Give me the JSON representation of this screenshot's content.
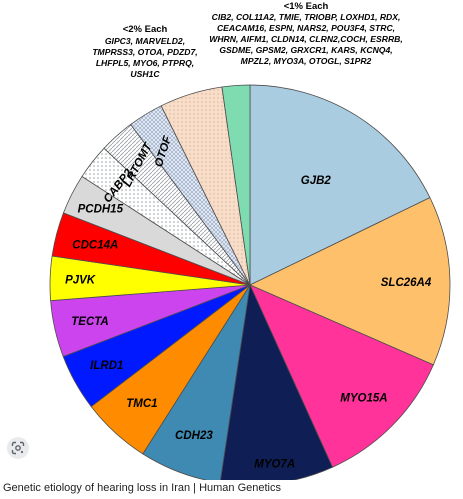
{
  "chart_data": {
    "type": "pie",
    "slices": [
      {
        "label": "GJB2",
        "value": 17.5,
        "color": "#a9cce0"
      },
      {
        "label": "SLC26A4",
        "value": 13.5,
        "color": "#ffc06b"
      },
      {
        "label": "MYO15A",
        "value": 11.5,
        "color": "#ff3399"
      },
      {
        "label": "MYO7A",
        "value": 9.0,
        "color": "#0f1f56"
      },
      {
        "label": "CDH23",
        "value": 6.5,
        "color": "#3f8ab2"
      },
      {
        "label": "TMC1",
        "value": 5.5,
        "color": "#ff8c00"
      },
      {
        "label": "ILRD1",
        "value": 4.5,
        "color": "#0019ff"
      },
      {
        "label": "TECTA",
        "value": 4.5,
        "color": "#cc44ee"
      },
      {
        "label": "PJVK",
        "value": 3.5,
        "color": "#ffff00"
      },
      {
        "label": "CDC14A",
        "value": 3.5,
        "color": "#ff0000"
      },
      {
        "label": "PCDH15",
        "value": 3.2,
        "color": "#d9d9d9"
      },
      {
        "label": "CABP2",
        "value": 2.8,
        "color": "#ffffff",
        "pattern": "dots"
      },
      {
        "label": "LRTOMT",
        "value": 2.8,
        "color": "#ffffff",
        "pattern": "lines"
      },
      {
        "label": "OTOF",
        "value": 2.8,
        "color": "#e6ecf5",
        "pattern": "grid"
      },
      {
        "label": "<2% Each",
        "value": 5.0,
        "color": "#f8ddc9",
        "pattern": "dots"
      },
      {
        "label": "<1% Each",
        "value": 2.2,
        "color": "#7fdcb0"
      }
    ],
    "annotations": {
      "lt2": {
        "heading": "<2% Each",
        "lines": [
          "GIPC3, MARVELD2,",
          "TMPRSS3, OTOA, PDZD7,",
          "LHFPL5, MYO6, PTPRQ,",
          "USH1C"
        ]
      },
      "lt1": {
        "heading": "<1% Each",
        "lines": [
          "CIB2, COL11A2, TMIE, TRIOBP,  LOXHD1, RDX,",
          "CEACAM16, ESPN, NARS2, POU3F4, STRC,",
          "WHRN, AIFM1, CLDN14, CLRN2,COCH, ESRRB,",
          "GSDME, GPSM2, GRXCR1, KARS, KCNQ4,",
          "MPZL2, MYO3A, OTOGL, S1PR2"
        ]
      }
    }
  },
  "page": {
    "caption": "Genetic etiology of hearing loss in Iran | Human Genetics",
    "lens_icon": "google-lens-icon"
  }
}
